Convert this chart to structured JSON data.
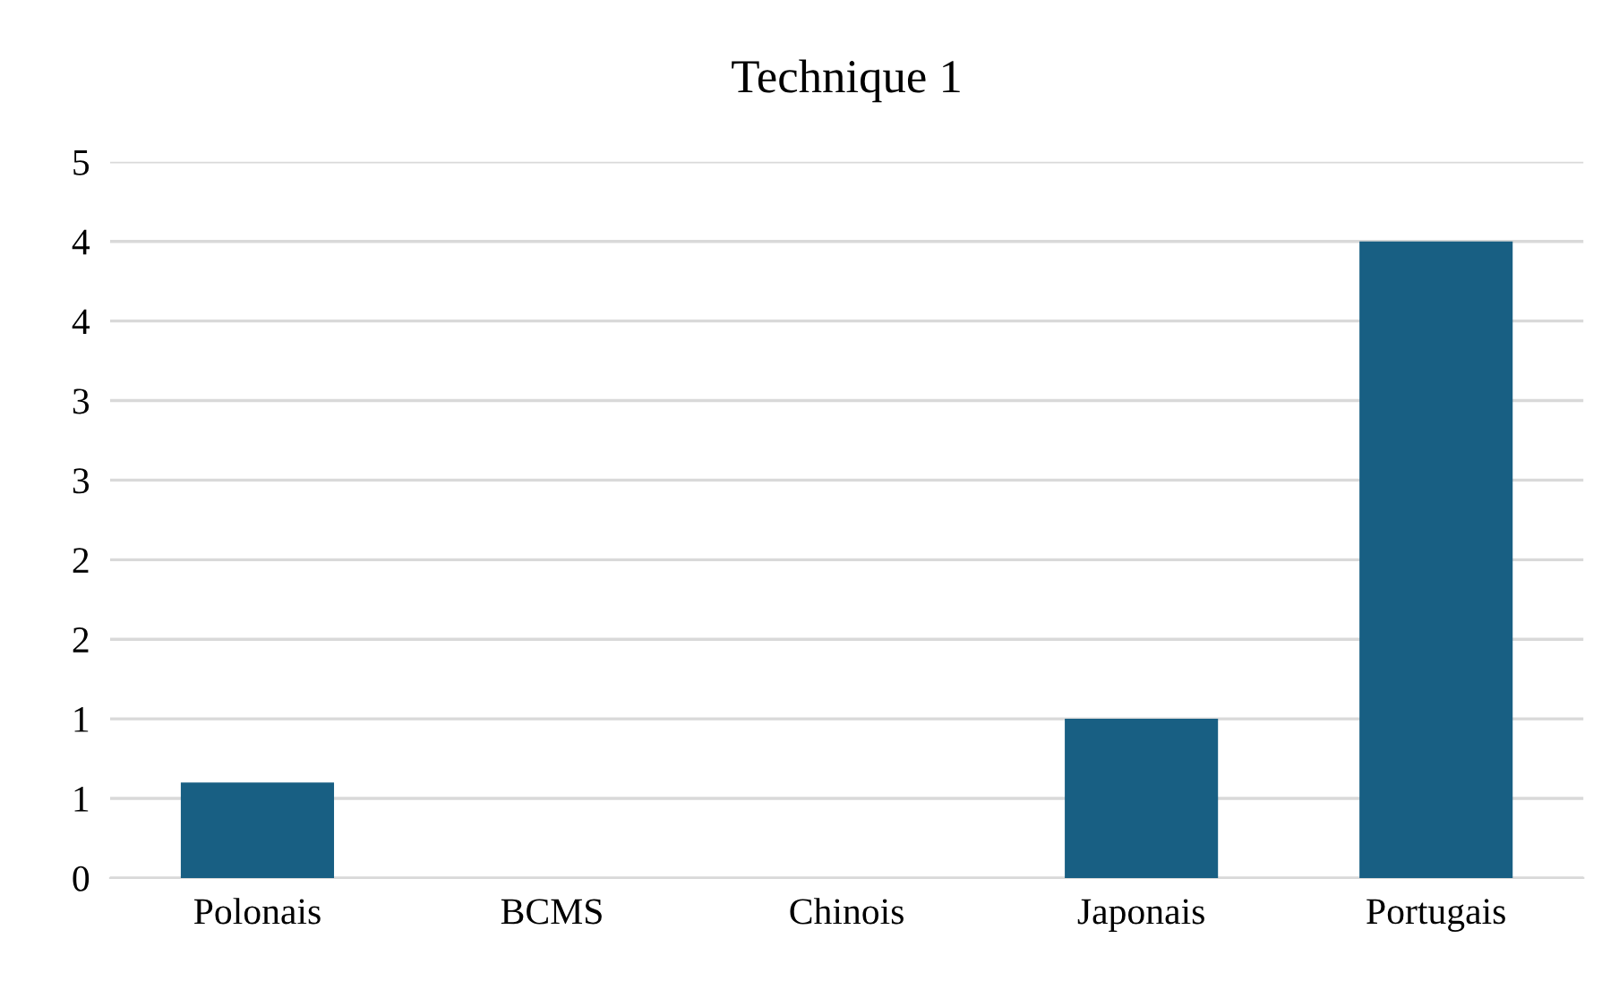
{
  "chart_data": {
    "type": "bar",
    "title": "Technique 1",
    "categories": [
      "Polonais",
      "BCMS",
      "Chinois",
      "Japonais",
      "Portugais"
    ],
    "values": [
      0.6,
      0,
      0,
      1,
      4
    ],
    "color": "#185f83",
    "ylim": [
      0,
      4.5
    ],
    "yticks": [
      0,
      {
        "value": 0.5,
        "label": "1"
      },
      1,
      {
        "value": 1.5,
        "label": "2"
      },
      2,
      {
        "value": 2.5,
        "label": "3"
      },
      3,
      {
        "value": 3.5,
        "label": "4"
      },
      4,
      {
        "value": 4.5,
        "label": "5"
      }
    ],
    "grid": "y",
    "legend": false
  }
}
